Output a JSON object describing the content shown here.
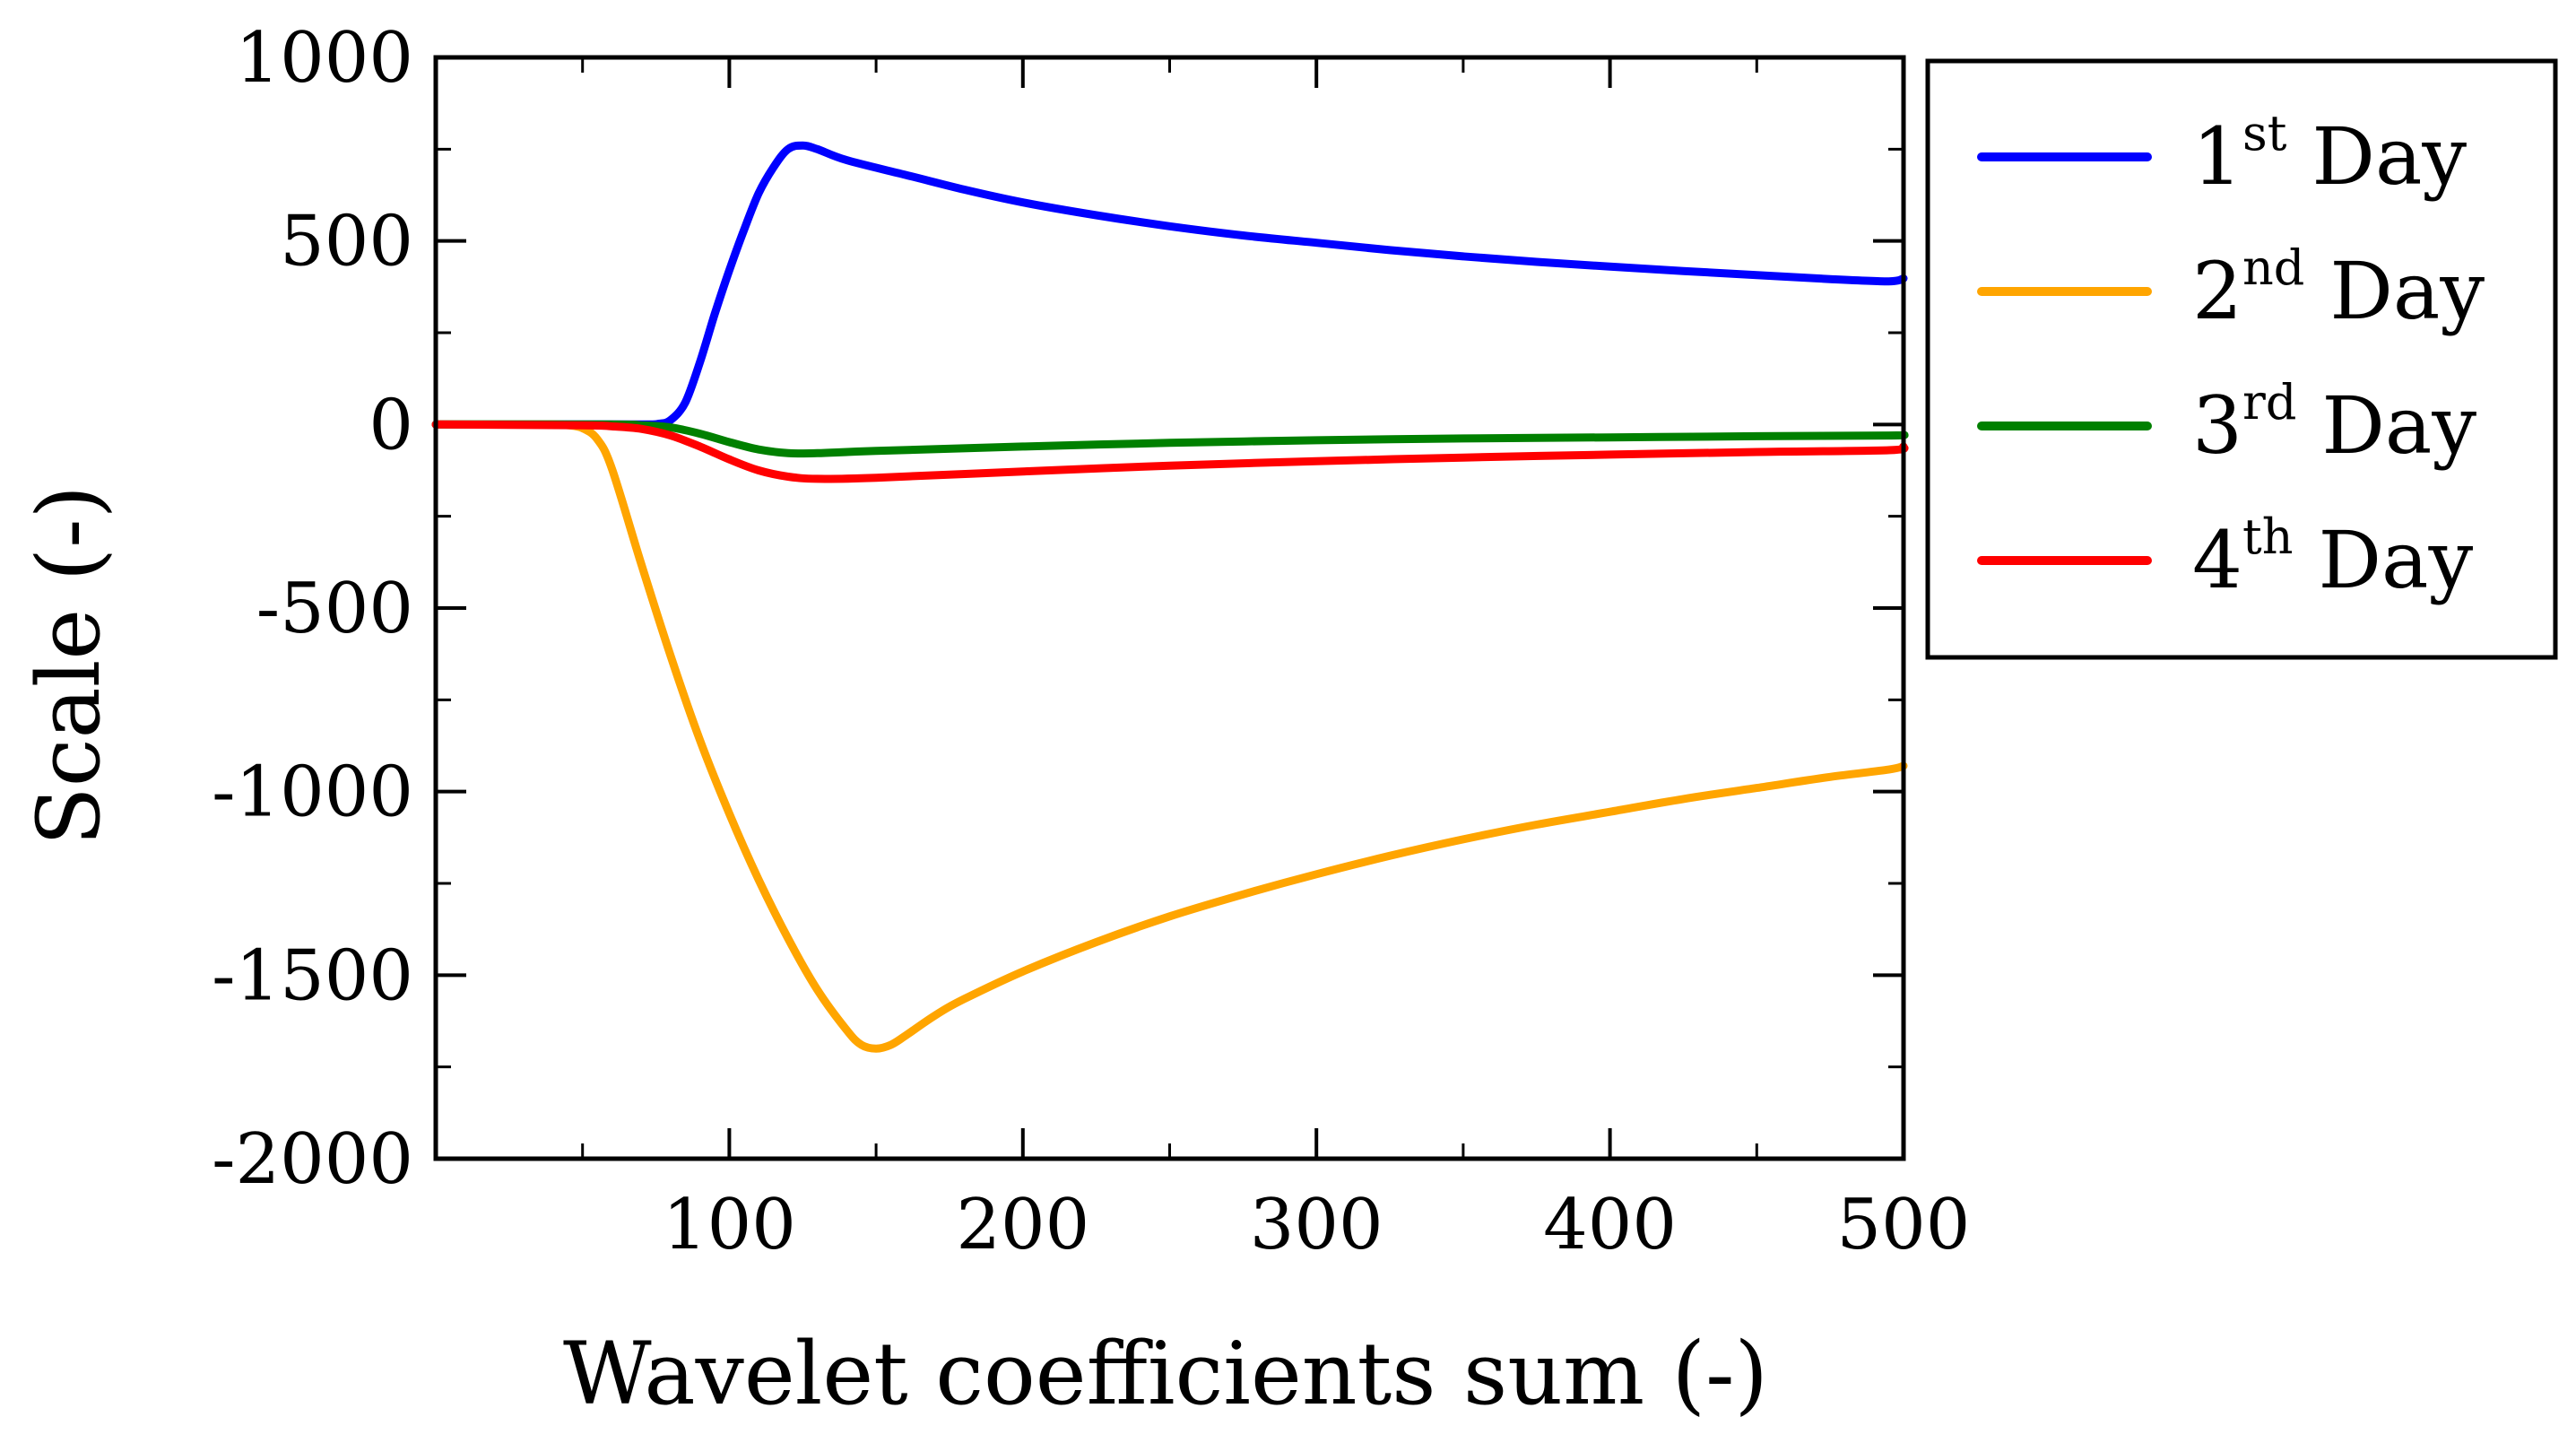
{
  "chart_data": {
    "type": "line",
    "title": "",
    "xlabel": "Wavelet coefficients sum (-)",
    "ylabel": "Scale (-)",
    "xlim": [
      0,
      500
    ],
    "ylim": [
      -2000,
      1000
    ],
    "xticks": [
      100,
      200,
      300,
      400,
      500
    ],
    "xtick_labels": [
      "100",
      "200",
      "300",
      "400",
      "500"
    ],
    "yticks": [
      1000,
      500,
      0,
      -500,
      -1000,
      -1500,
      -2000
    ],
    "ytick_labels": [
      "1000",
      "500",
      "0",
      "-500",
      "-1000",
      "-1500",
      "-2000"
    ],
    "grid": false,
    "legend_position": "outside-right",
    "series": [
      {
        "name": "1st Day",
        "label_base": "1",
        "label_sup": "st",
        "label_rest": " Day",
        "color": "#0000ff",
        "x": [
          0,
          40,
          70,
          76,
          80,
          85,
          90,
          95,
          100,
          105,
          110,
          115,
          120,
          125,
          130,
          140,
          160,
          180,
          200,
          225,
          250,
          275,
          300,
          325,
          350,
          375,
          400,
          425,
          450,
          475,
          495,
          500
        ],
        "y": [
          0,
          0,
          0,
          2,
          12,
          60,
          170,
          300,
          420,
          530,
          630,
          700,
          750,
          760,
          750,
          720,
          680,
          640,
          605,
          570,
          540,
          515,
          495,
          475,
          458,
          443,
          430,
          418,
          407,
          396,
          390,
          398
        ]
      },
      {
        "name": "2nd Day",
        "label_base": "2",
        "label_sup": "nd",
        "label_rest": " Day",
        "color": "#ffa500",
        "x": [
          0,
          40,
          45,
          50,
          55,
          60,
          70,
          80,
          90,
          100,
          110,
          120,
          130,
          140,
          145,
          150,
          155,
          160,
          170,
          180,
          200,
          225,
          250,
          275,
          300,
          325,
          350,
          375,
          400,
          425,
          450,
          475,
          495,
          500
        ],
        "y": [
          0,
          0,
          -2,
          -10,
          -40,
          -120,
          -380,
          -630,
          -860,
          -1060,
          -1240,
          -1400,
          -1540,
          -1650,
          -1690,
          -1700,
          -1690,
          -1665,
          -1610,
          -1565,
          -1490,
          -1410,
          -1340,
          -1280,
          -1225,
          -1175,
          -1130,
          -1090,
          -1055,
          -1020,
          -990,
          -960,
          -940,
          -930
        ]
      },
      {
        "name": "3rd Day",
        "label_base": "3",
        "label_sup": "rd",
        "label_rest": " Day",
        "color": "#008000",
        "x": [
          0,
          60,
          70,
          80,
          90,
          100,
          110,
          120,
          130,
          150,
          200,
          250,
          300,
          350,
          400,
          450,
          495,
          500
        ],
        "y": [
          0,
          0,
          -2,
          -8,
          -25,
          -48,
          -68,
          -78,
          -78,
          -72,
          -60,
          -50,
          -43,
          -38,
          -35,
          -32,
          -30,
          -28
        ]
      },
      {
        "name": "4th Day",
        "label_base": "4",
        "label_sup": "th",
        "label_rest": " Day",
        "color": "#ff0000",
        "x": [
          0,
          50,
          60,
          70,
          80,
          90,
          100,
          110,
          120,
          130,
          150,
          200,
          250,
          300,
          350,
          400,
          450,
          495,
          500
        ],
        "y": [
          0,
          -2,
          -5,
          -12,
          -30,
          -60,
          -95,
          -125,
          -142,
          -148,
          -145,
          -128,
          -112,
          -100,
          -90,
          -82,
          -75,
          -70,
          -60
        ]
      }
    ]
  }
}
